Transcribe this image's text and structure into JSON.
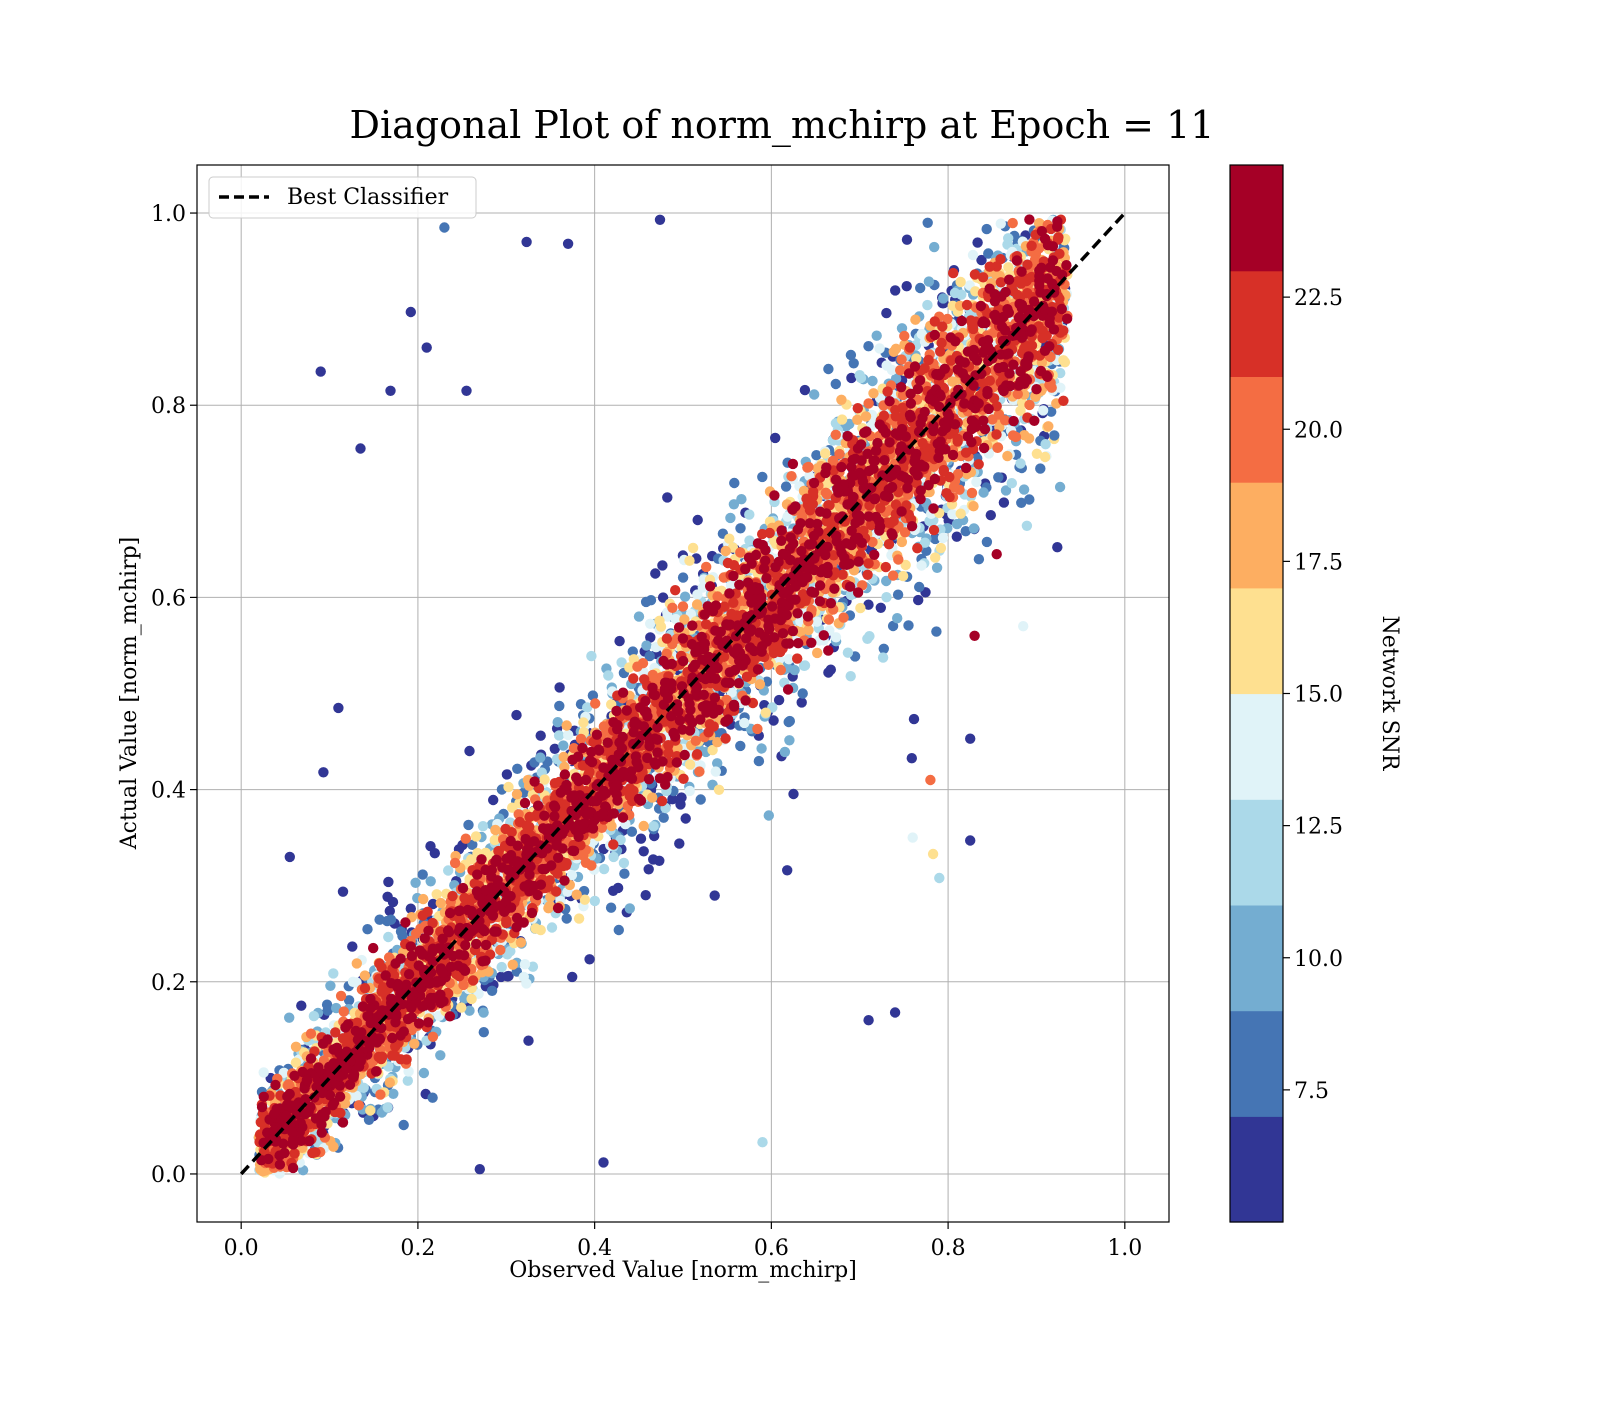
{
  "chart_data": {
    "type": "scatter",
    "title": "Diagonal Plot of norm_mchirp at Epoch = 11",
    "xlabel": "Observed Value [norm_mchirp]",
    "ylabel": "Actual Value [norm_mchirp]",
    "xlim": [
      -0.05,
      1.05
    ],
    "ylim": [
      -0.05,
      1.05
    ],
    "x_ticks": [
      0.0,
      0.2,
      0.4,
      0.6,
      0.8,
      1.0
    ],
    "y_ticks": [
      0.0,
      0.2,
      0.4,
      0.6,
      0.8,
      1.0
    ],
    "x_tick_labels": [
      "0.0",
      "0.2",
      "0.4",
      "0.6",
      "0.8",
      "1.0"
    ],
    "y_tick_labels": [
      "0.0",
      "0.2",
      "0.4",
      "0.6",
      "0.8",
      "1.0"
    ],
    "grid": true,
    "legend": {
      "placement": "top-left",
      "entries": [
        "Best Classifier"
      ]
    },
    "reference_line": {
      "name": "Best Classifier",
      "x": [
        0.0,
        1.0
      ],
      "y": [
        0.0,
        1.0
      ],
      "style": "dashed",
      "color": "#000000"
    },
    "colorbar": {
      "label": "Network SNR",
      "range": [
        5.0,
        25.0
      ],
      "ticks": [
        7.5,
        10.0,
        12.5,
        15.0,
        17.5,
        20.0,
        22.5
      ],
      "tick_labels": [
        "7.5",
        "10.0",
        "12.5",
        "15.0",
        "17.5",
        "20.0",
        "22.5"
      ],
      "colors": [
        "#313695",
        "#4575b4",
        "#74add1",
        "#abd9e9",
        "#e0f3f8",
        "#fee090",
        "#fdae61",
        "#f46d43",
        "#d73027",
        "#a50026"
      ]
    },
    "points": [
      [
        0.09,
        0.835,
        6
      ],
      [
        0.23,
        0.985,
        7
      ],
      [
        0.474,
        0.993,
        6
      ],
      [
        0.323,
        0.97,
        6
      ],
      [
        0.37,
        0.968,
        6
      ],
      [
        0.11,
        0.485,
        6
      ],
      [
        0.135,
        0.755,
        6
      ],
      [
        0.192,
        0.897,
        6
      ],
      [
        0.169,
        0.815,
        6
      ],
      [
        0.21,
        0.86,
        6
      ],
      [
        0.255,
        0.815,
        6
      ],
      [
        0.26,
        0.33,
        6
      ],
      [
        0.093,
        0.418,
        6
      ],
      [
        0.055,
        0.33,
        6
      ],
      [
        0.59,
        0.033,
        11
      ],
      [
        0.71,
        0.16,
        6
      ],
      [
        0.74,
        0.168,
        6
      ],
      [
        0.825,
        0.347,
        6
      ],
      [
        0.825,
        0.453,
        6
      ],
      [
        0.783,
        0.333,
        15
      ],
      [
        0.79,
        0.308,
        12
      ],
      [
        0.27,
        0.005,
        6
      ],
      [
        0.41,
        0.012,
        6
      ],
      [
        0.92,
        0.765,
        16
      ],
      [
        0.855,
        0.645,
        24
      ],
      [
        0.83,
        0.56,
        24
      ],
      [
        0.885,
        0.57,
        14
      ],
      [
        0.78,
        0.41,
        19
      ],
      [
        0.76,
        0.35,
        13
      ]
    ]
  }
}
